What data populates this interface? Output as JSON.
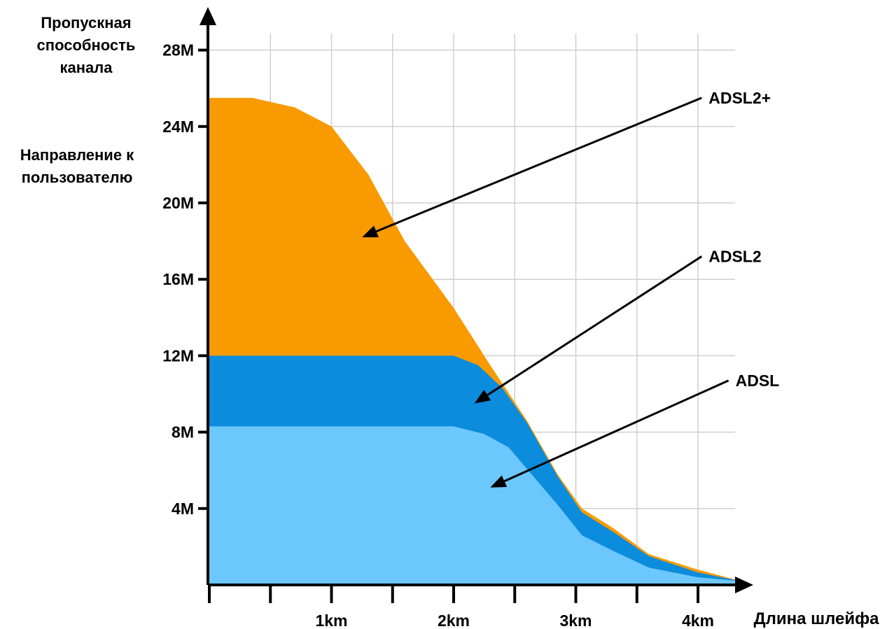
{
  "chart_data": {
    "type": "area",
    "y_title_lines": [
      "Пропускная",
      "способность",
      "канала"
    ],
    "y_subtitle_lines": [
      "Направление к",
      "пользователю"
    ],
    "xlabel": "Длина шлейфа",
    "x_unit": "km",
    "xlim": [
      0,
      4.35
    ],
    "ylim": [
      0,
      29
    ],
    "x_ticks": [
      {
        "value": 1,
        "label": "1km"
      },
      {
        "value": 2,
        "label": "2km"
      },
      {
        "value": 3,
        "label": "3km"
      },
      {
        "value": 4,
        "label": "4km"
      }
    ],
    "x_minor_ticks": [
      0.5,
      1.5,
      2.5,
      3.5
    ],
    "y_ticks": [
      {
        "value": 4,
        "label": "4M"
      },
      {
        "value": 8,
        "label": "8M"
      },
      {
        "value": 12,
        "label": "12M"
      },
      {
        "value": 16,
        "label": "16M"
      },
      {
        "value": 20,
        "label": "20M"
      },
      {
        "value": 24,
        "label": "24M"
      },
      {
        "value": 28,
        "label": "28M"
      }
    ],
    "grid": true,
    "series": [
      {
        "name": "ADSL2+",
        "color": "#f99a00",
        "points": [
          [
            0,
            25.5
          ],
          [
            0.35,
            25.5
          ],
          [
            0.7,
            25.0
          ],
          [
            1.0,
            24.0
          ],
          [
            1.3,
            21.5
          ],
          [
            1.6,
            18.0
          ],
          [
            2.0,
            14.5
          ],
          [
            2.3,
            11.5
          ],
          [
            2.6,
            8.6
          ],
          [
            2.85,
            5.8
          ],
          [
            3.05,
            4.0
          ],
          [
            3.3,
            3.0
          ],
          [
            3.6,
            1.6
          ],
          [
            4.0,
            0.8
          ],
          [
            4.35,
            0.2
          ]
        ],
        "annotation": {
          "label_x": 4.03,
          "label_y": 25.5,
          "arrow_to": [
            1.25,
            18.2
          ]
        }
      },
      {
        "name": "ADSL2",
        "color": "#0b8cdd",
        "points": [
          [
            0,
            12.0
          ],
          [
            2.0,
            12.0
          ],
          [
            2.2,
            11.5
          ],
          [
            2.4,
            10.3
          ],
          [
            2.6,
            8.5
          ],
          [
            2.85,
            5.7
          ],
          [
            3.05,
            3.8
          ],
          [
            3.3,
            2.8
          ],
          [
            3.6,
            1.5
          ],
          [
            4.0,
            0.65
          ],
          [
            4.35,
            0.2
          ]
        ],
        "annotation": {
          "label_x": 4.03,
          "label_y": 17.2,
          "arrow_to": [
            2.17,
            9.5
          ]
        }
      },
      {
        "name": "ADSL",
        "color": "#6cc7fc",
        "points": [
          [
            0,
            8.3
          ],
          [
            2.0,
            8.3
          ],
          [
            2.25,
            7.9
          ],
          [
            2.45,
            7.2
          ],
          [
            2.65,
            5.7
          ],
          [
            2.85,
            4.2
          ],
          [
            3.05,
            2.6
          ],
          [
            3.3,
            1.8
          ],
          [
            3.6,
            0.9
          ],
          [
            4.0,
            0.4
          ],
          [
            4.35,
            0.2
          ]
        ],
        "annotation": {
          "label_x": 4.25,
          "label_y": 10.7,
          "arrow_to": [
            2.3,
            5.1
          ]
        }
      }
    ]
  }
}
